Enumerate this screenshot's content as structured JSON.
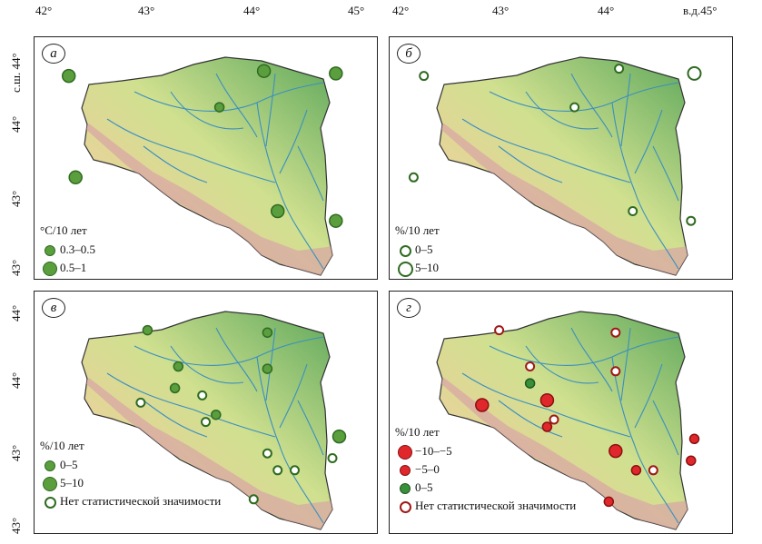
{
  "axes": {
    "top_ticks_left": [
      "42°",
      "43°",
      "44°",
      "45°"
    ],
    "top_ticks_right": [
      "42°",
      "43°",
      "44°",
      "в.д.45°"
    ],
    "left_ticks_top": [
      "с.ш. 44°",
      "44°",
      "43°",
      "43°"
    ],
    "left_ticks_bottom": [
      "44°",
      "44°",
      "43°",
      "43°"
    ]
  },
  "colors": {
    "panel_a_fill": "#5a9e3e",
    "panel_b_fill": "#ffffff",
    "green_stroke": "#2f6b20",
    "red_fill": "#e0282c",
    "red_stroke": "#8a1010"
  },
  "panels": {
    "a": {
      "label": "а",
      "legend_title": "°С/10 лет",
      "legend": [
        "0.3–0.5",
        "0.5–1"
      ],
      "points": [
        [
          0.1,
          0.16,
          2
        ],
        [
          0.12,
          0.58,
          2
        ],
        [
          0.54,
          0.29,
          1
        ],
        [
          0.67,
          0.14,
          2
        ],
        [
          0.88,
          0.15,
          2
        ],
        [
          0.71,
          0.72,
          2
        ],
        [
          0.88,
          0.76,
          2
        ]
      ]
    },
    "b": {
      "label": "б",
      "legend_title": "%/10 лет",
      "legend": [
        "0–5",
        "5–10"
      ],
      "points": [
        [
          0.1,
          0.16,
          1
        ],
        [
          0.07,
          0.58,
          1
        ],
        [
          0.54,
          0.29,
          1
        ],
        [
          0.67,
          0.13,
          1
        ],
        [
          0.89,
          0.15,
          2
        ],
        [
          0.71,
          0.72,
          1
        ],
        [
          0.88,
          0.76,
          1
        ]
      ]
    },
    "v": {
      "label": "в",
      "legend_title": "%/10 лет",
      "legend": [
        "0–5",
        "5–10",
        "Нет статистической значимости"
      ],
      "points": [
        [
          0.33,
          0.16,
          1,
          "g"
        ],
        [
          0.42,
          0.31,
          1,
          "g"
        ],
        [
          0.41,
          0.4,
          1,
          "g"
        ],
        [
          0.31,
          0.46,
          1,
          "n"
        ],
        [
          0.49,
          0.43,
          1,
          "n"
        ],
        [
          0.53,
          0.51,
          1,
          "g"
        ],
        [
          0.5,
          0.54,
          1,
          "n"
        ],
        [
          0.68,
          0.17,
          1,
          "g"
        ],
        [
          0.68,
          0.32,
          1,
          "g"
        ],
        [
          0.89,
          0.6,
          2,
          "g"
        ],
        [
          0.68,
          0.67,
          1,
          "n"
        ],
        [
          0.71,
          0.74,
          1,
          "n"
        ],
        [
          0.76,
          0.74,
          1,
          "n"
        ],
        [
          0.87,
          0.69,
          1,
          "n"
        ],
        [
          0.64,
          0.86,
          1,
          "n"
        ]
      ]
    },
    "g": {
      "label": "г",
      "legend_title": "%/10 лет",
      "legend": [
        "−10–−5",
        "−5–0",
        "0–5",
        "Нет статистической значимости"
      ],
      "points": [
        [
          0.32,
          0.16,
          1,
          "n"
        ],
        [
          0.41,
          0.31,
          1,
          "n"
        ],
        [
          0.41,
          0.38,
          1,
          "gr"
        ],
        [
          0.27,
          0.47,
          2,
          "r"
        ],
        [
          0.46,
          0.45,
          2,
          "r"
        ],
        [
          0.48,
          0.53,
          1,
          "n"
        ],
        [
          0.46,
          0.56,
          1,
          "r"
        ],
        [
          0.66,
          0.17,
          1,
          "n"
        ],
        [
          0.66,
          0.33,
          1,
          "n"
        ],
        [
          0.89,
          0.61,
          1,
          "r"
        ],
        [
          0.66,
          0.66,
          2,
          "r"
        ],
        [
          0.72,
          0.74,
          1,
          "r"
        ],
        [
          0.77,
          0.74,
          1,
          "n"
        ],
        [
          0.88,
          0.7,
          1,
          "r"
        ],
        [
          0.64,
          0.87,
          1,
          "r"
        ]
      ]
    }
  }
}
